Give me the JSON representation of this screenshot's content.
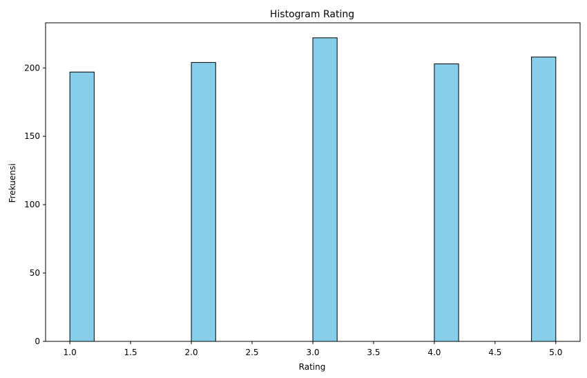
{
  "chart_data": {
    "type": "bar",
    "title": "Histogram Rating",
    "xlabel": "Rating",
    "ylabel": "Frekuensi",
    "xlim": [
      0.8,
      5.2
    ],
    "ylim": [
      0,
      233
    ],
    "xticks": [
      1.0,
      1.5,
      2.0,
      2.5,
      3.0,
      3.5,
      4.0,
      4.5,
      5.0
    ],
    "xtick_labels": [
      "1.0",
      "1.5",
      "2.0",
      "2.5",
      "3.0",
      "3.5",
      "4.0",
      "4.5",
      "5.0"
    ],
    "yticks": [
      0,
      50,
      100,
      150,
      200
    ],
    "ytick_labels": [
      "0",
      "50",
      "100",
      "150",
      "200"
    ],
    "bins": [
      {
        "x0": 1.0,
        "x1": 1.2,
        "value": 197
      },
      {
        "x0": 1.2,
        "x1": 1.4,
        "value": 0
      },
      {
        "x0": 1.4,
        "x1": 1.6,
        "value": 0
      },
      {
        "x0": 1.6,
        "x1": 1.8,
        "value": 0
      },
      {
        "x0": 1.8,
        "x1": 2.0,
        "value": 0
      },
      {
        "x0": 2.0,
        "x1": 2.2,
        "value": 204
      },
      {
        "x0": 2.2,
        "x1": 2.4,
        "value": 0
      },
      {
        "x0": 2.4,
        "x1": 2.6,
        "value": 0
      },
      {
        "x0": 2.6,
        "x1": 2.8,
        "value": 0
      },
      {
        "x0": 2.8,
        "x1": 3.0,
        "value": 0
      },
      {
        "x0": 3.0,
        "x1": 3.2,
        "value": 222
      },
      {
        "x0": 3.2,
        "x1": 3.4,
        "value": 0
      },
      {
        "x0": 3.4,
        "x1": 3.6,
        "value": 0
      },
      {
        "x0": 3.6,
        "x1": 3.8,
        "value": 0
      },
      {
        "x0": 3.8,
        "x1": 4.0,
        "value": 0
      },
      {
        "x0": 4.0,
        "x1": 4.2,
        "value": 203
      },
      {
        "x0": 4.2,
        "x1": 4.4,
        "value": 0
      },
      {
        "x0": 4.4,
        "x1": 4.6,
        "value": 0
      },
      {
        "x0": 4.6,
        "x1": 4.8,
        "value": 0
      },
      {
        "x0": 4.8,
        "x1": 5.0,
        "value": 208
      }
    ],
    "bar_color": "#87ceeb",
    "edge_color": "#000000",
    "grid": false,
    "legend": "none"
  }
}
